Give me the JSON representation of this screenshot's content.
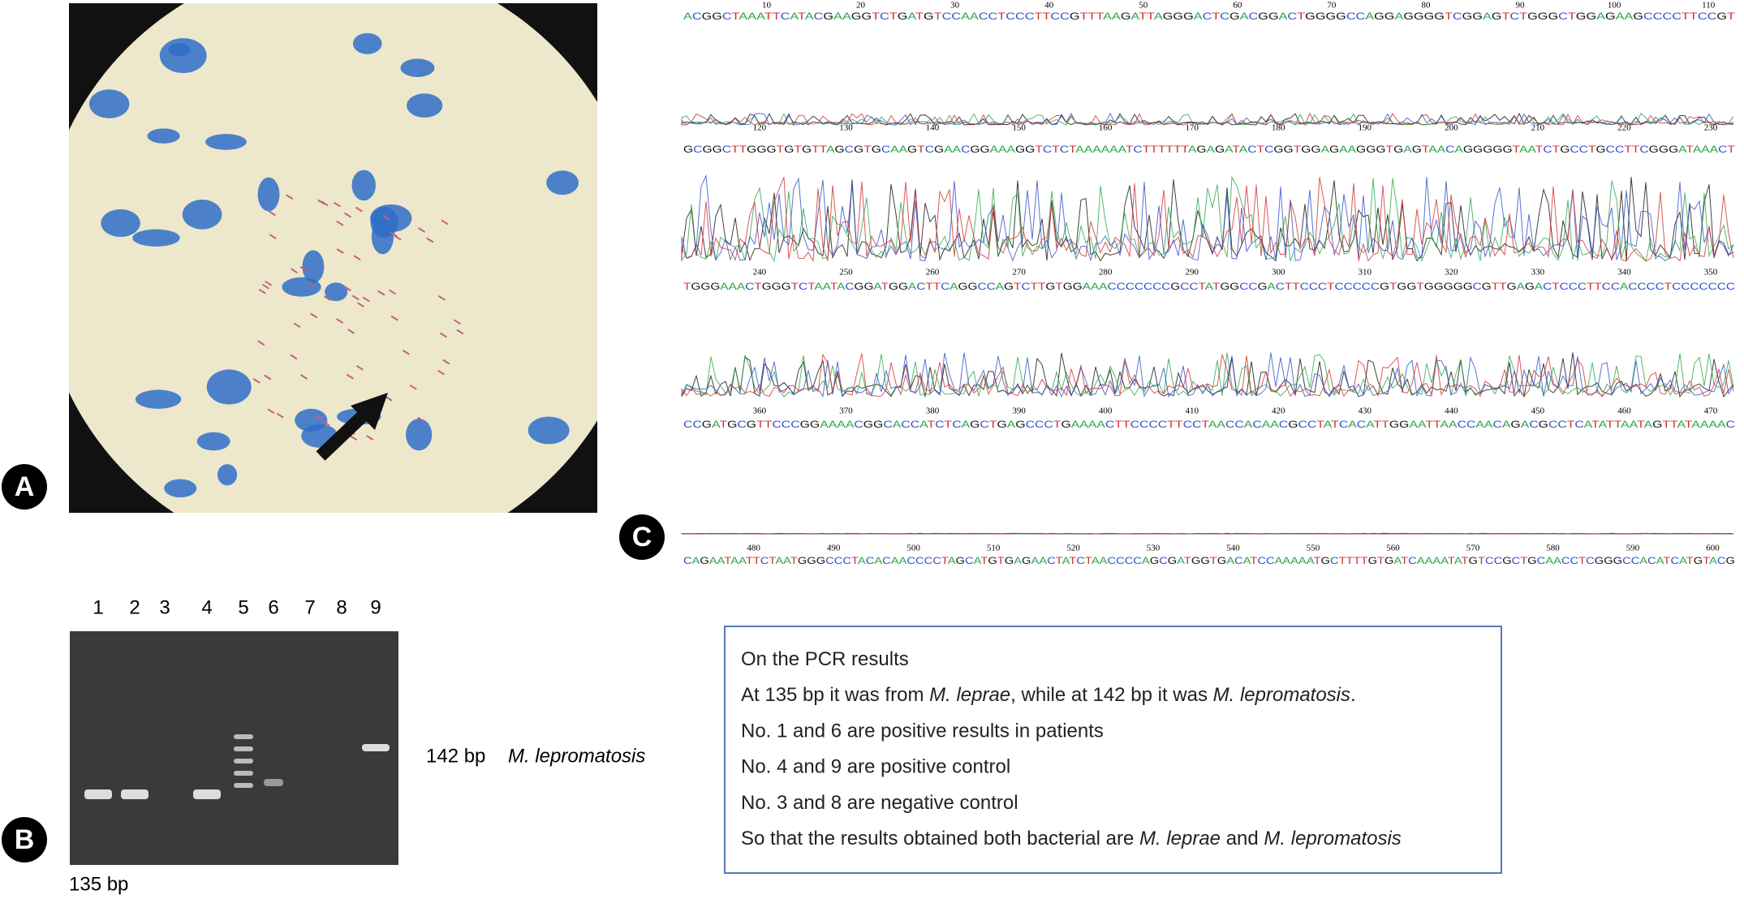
{
  "panels": {
    "a": "A",
    "b": "B",
    "c": "C"
  },
  "gel": {
    "lanes": [
      "1",
      "2",
      "3",
      "4",
      "5",
      "6",
      "7",
      "8",
      "9"
    ],
    "upper_band": "142 bp",
    "upper_species": "M. lepromatosis",
    "lower_band": "135 bp"
  },
  "sequence": {
    "rows": [
      {
        "positions": [
          "10",
          "20",
          "30",
          "40",
          "50",
          "60",
          "70",
          "80",
          "90",
          "100",
          "110"
        ],
        "bases": "ACGGCTAAATTCATACGAAGGTCTGATGTCCAACCTCCCTTCCGTTTAAGATTAGGGACTCGACGGACTGGGGCCAGGAGGGGTCGGAGTCTGGGCTGGAGAAGCCCCTTCCGT"
      },
      {
        "positions": [
          "120",
          "130",
          "140",
          "150",
          "160",
          "170",
          "180",
          "190",
          "200",
          "210",
          "220",
          "230"
        ],
        "bases": "GCGGCTTGGGTGTGTTAGCGTGCAAGTCGAACGGAAAGGTCTCTAAAAAATCTTTTTTAGAGATACTCGGTGGAGAAGGGTGAGTAACAGGGGGTAATCTGCCTGCCTTCGGGATAAACT"
      },
      {
        "positions": [
          "240",
          "250",
          "260",
          "270",
          "280",
          "290",
          "300",
          "310",
          "320",
          "330",
          "340",
          "350"
        ],
        "bases": "TGGGAAACTGGGTCTAATACGGATGGACTTCAGGCCAGTCTTGTGGAAACCCCCCCGCCTATGGCCGACTTCCCTCCCCCGTGGTGGGGGCGTTGAGACTCCCTTCCACCCCTCCCCCCC"
      },
      {
        "positions": [
          "360",
          "370",
          "380",
          "390",
          "400",
          "410",
          "420",
          "430",
          "440",
          "450",
          "460",
          "470"
        ],
        "bases": "CCGATGCGTTCCCGGAAAACGGCACCATCTCAGCTGAGCCCTGAAAACTTCCCCTTCCTAACCACAACGCCTATCACATTGGAATTAACCAACAGACGCCTCATATTAATAGTTATAAAAC"
      },
      {
        "positions": [
          "480",
          "490",
          "500",
          "510",
          "520",
          "530",
          "540",
          "550",
          "560",
          "570",
          "580",
          "590",
          "600"
        ],
        "bases": "CAGAATAATTCTAATGGGCCCTACACAACCCCTAGCATGTGAGAACTATCTAACCCCAGCGATGGTGACATCCAAAAATGCTTTTGTGATCAAAATATGTCCGCTGCAACCTCGGGCCACATCATGTACG"
      }
    ]
  },
  "box": {
    "lines": [
      [
        {
          "text": "On the PCR results",
          "italic": false
        }
      ],
      [
        {
          "text": "At 135 bp it was from ",
          "italic": false
        },
        {
          "text": "M. leprae",
          "italic": true
        },
        {
          "text": ", while at 142 bp it was ",
          "italic": false
        },
        {
          "text": "M. lepromatosis",
          "italic": true
        },
        {
          "text": ".",
          "italic": false
        }
      ],
      [
        {
          "text": "No. 1 and 6 are positive results in patients",
          "italic": false
        }
      ],
      [
        {
          "text": "No. 4 and 9 are positive control",
          "italic": false
        }
      ],
      [
        {
          "text": "No. 3 and 8 are negative control",
          "italic": false
        }
      ],
      [
        {
          "text": "So that the results obtained both bacterial are ",
          "italic": false
        },
        {
          "text": "M. leprae",
          "italic": true
        },
        {
          "text": " and ",
          "italic": false
        },
        {
          "text": "M. lepromatosis",
          "italic": true
        }
      ]
    ]
  }
}
